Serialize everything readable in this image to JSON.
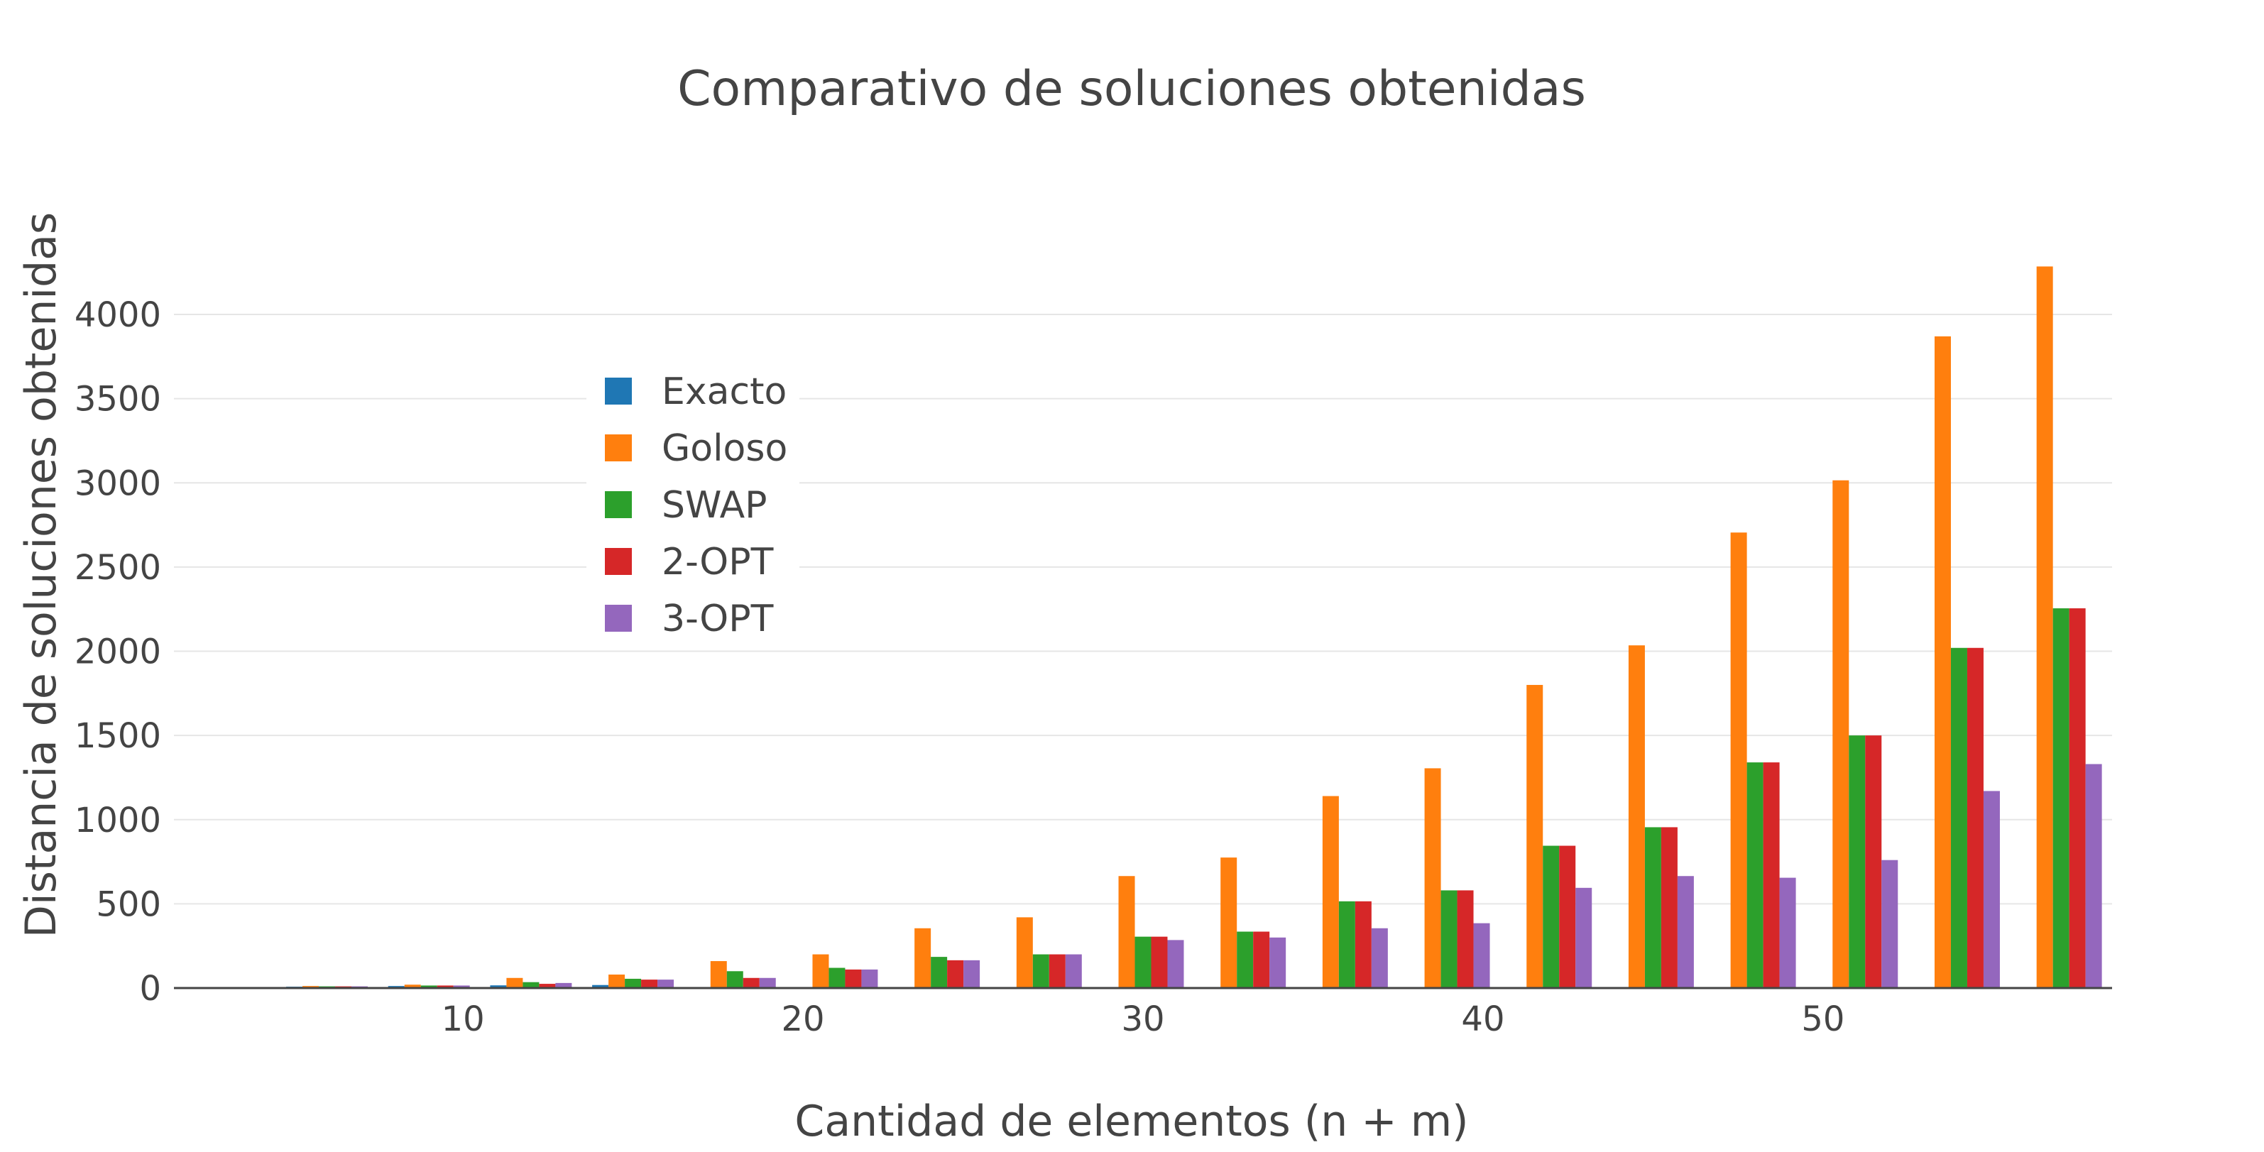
{
  "chart_data": {
    "type": "bar",
    "title": "Comparativo de soluciones obtenidas",
    "xlabel": "Cantidad de elementos (n + m)",
    "ylabel": "Distancia de soluciones obtenidas",
    "categories": [
      6,
      9,
      12,
      15,
      18,
      21,
      24,
      27,
      30,
      33,
      36,
      39,
      42,
      45,
      48,
      51,
      54,
      57
    ],
    "x_ticks": [
      "10",
      "20",
      "30",
      "40",
      "50"
    ],
    "x_tick_values": [
      10,
      20,
      30,
      40,
      50
    ],
    "y_ticks": [
      "0",
      "500",
      "1000",
      "1500",
      "2000",
      "2500",
      "3000",
      "3500",
      "4000"
    ],
    "y_tick_values": [
      0,
      500,
      1000,
      1500,
      2000,
      2500,
      3000,
      3500,
      4000
    ],
    "xlim": [
      1.5,
      58.5
    ],
    "ylim": [
      0,
      4350
    ],
    "grid": true,
    "legend_position": "top-left-inside",
    "series": [
      {
        "name": "Exacto",
        "color": "#1f77b4",
        "values": [
          8,
          12,
          16,
          18,
          null,
          null,
          null,
          null,
          null,
          null,
          null,
          null,
          null,
          null,
          null,
          null,
          null,
          null
        ]
      },
      {
        "name": "Goloso",
        "color": "#ff7f0e",
        "values": [
          12,
          20,
          60,
          80,
          160,
          200,
          355,
          420,
          665,
          775,
          1140,
          1305,
          1800,
          2035,
          2705,
          3015,
          3870,
          4285
        ]
      },
      {
        "name": "SWAP",
        "color": "#2ca02c",
        "values": [
          10,
          15,
          35,
          55,
          100,
          120,
          185,
          200,
          305,
          335,
          515,
          580,
          845,
          955,
          1340,
          1500,
          2020,
          2255
        ]
      },
      {
        "name": "2-OPT",
        "color": "#d62728",
        "values": [
          10,
          15,
          25,
          50,
          60,
          110,
          165,
          200,
          305,
          335,
          515,
          580,
          845,
          955,
          1340,
          1500,
          2020,
          2255
        ]
      },
      {
        "name": "3-OPT",
        "color": "#9467bd",
        "values": [
          10,
          15,
          30,
          50,
          60,
          110,
          165,
          200,
          285,
          300,
          355,
          385,
          595,
          665,
          655,
          760,
          1170,
          1330
        ]
      }
    ]
  }
}
